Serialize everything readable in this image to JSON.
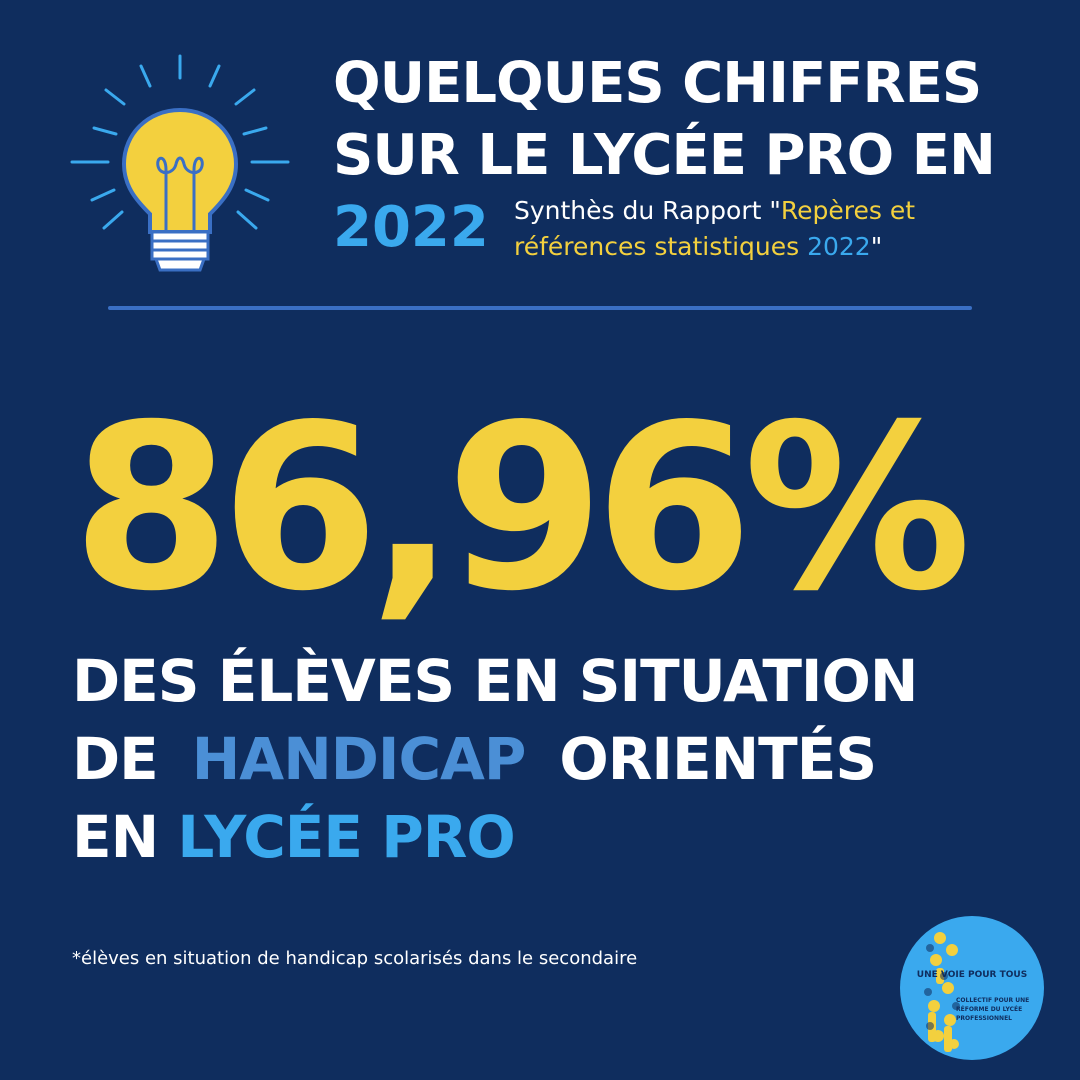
{
  "header": {
    "title_line1": "QUELQUES CHIFFRES",
    "title_line2": "SUR LE LYCÉE PRO EN",
    "year": "2022",
    "subtitle_line1_prefix": "Synthès du Rapport \"",
    "subtitle_line1_highlight": "Repères et",
    "subtitle_line2_highlight": "références statistiques ",
    "subtitle_line2_year": "2022",
    "subtitle_line2_suffix": "\""
  },
  "stat": {
    "value": "86,96%"
  },
  "caption": {
    "line1": "DES ÉLÈVES EN SITUATION",
    "line2_prefix": "DE",
    "line2_highlight": "HANDICAP",
    "line2_suffix": "ORIENTÉS",
    "line3_prefix": "EN ",
    "line3_highlight": "LYCÉE PRO"
  },
  "footnote": "*élèves en situation de handicap scolarisés dans le secondaire",
  "logo": {
    "title": "UNE VOIE POUR TOUS",
    "subtitle": "COLLECTIF POUR UNE RÉFORME DU LYCÉE PROFESSIONNEL"
  },
  "icons": {
    "header_icon": "lightbulb-icon",
    "logo_icon": "collective-logo"
  },
  "colors": {
    "background": "#0f2d5e",
    "yellow": "#f3d03e",
    "light_blue": "#3aa9ee",
    "mid_blue": "#4b8fd6",
    "white": "#ffffff"
  }
}
